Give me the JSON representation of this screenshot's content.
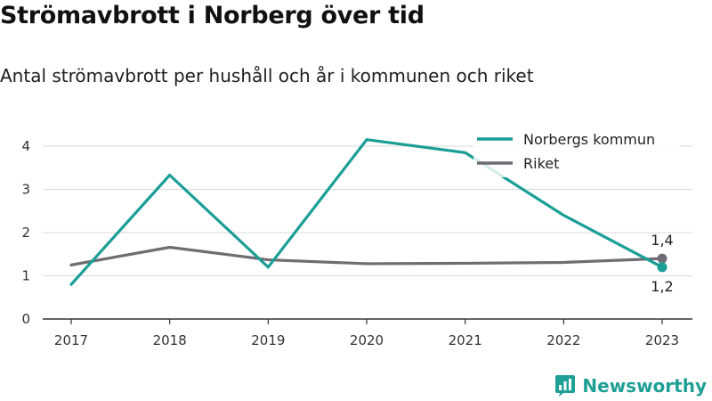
{
  "title": "Strömavbrott i Norberg över tid",
  "subtitle": "Antal strömavbrott per hushåll och år i kommunen och riket",
  "brand": {
    "name": "Newsworthy",
    "logo_icon": "bar-chart-logo-icon"
  },
  "chart_data": {
    "type": "line",
    "x": [
      "2017",
      "2018",
      "2019",
      "2020",
      "2021",
      "2022",
      "2023"
    ],
    "ylim": [
      0,
      4.4
    ],
    "yticks": [
      "0",
      "1",
      "2",
      "3",
      "4"
    ],
    "grid": true,
    "legend_position": "top-right",
    "series": [
      {
        "name": "Norbergs kommun",
        "color": "#1a9e96",
        "values": [
          0.8,
          3.33,
          1.2,
          4.15,
          3.85,
          2.4,
          1.2
        ]
      },
      {
        "name": "Riket",
        "color": "#6d6d73",
        "values": [
          1.25,
          1.66,
          1.37,
          1.28,
          1.29,
          1.31,
          1.4
        ]
      }
    ],
    "end_labels": [
      "1,2",
      "1,4"
    ]
  }
}
